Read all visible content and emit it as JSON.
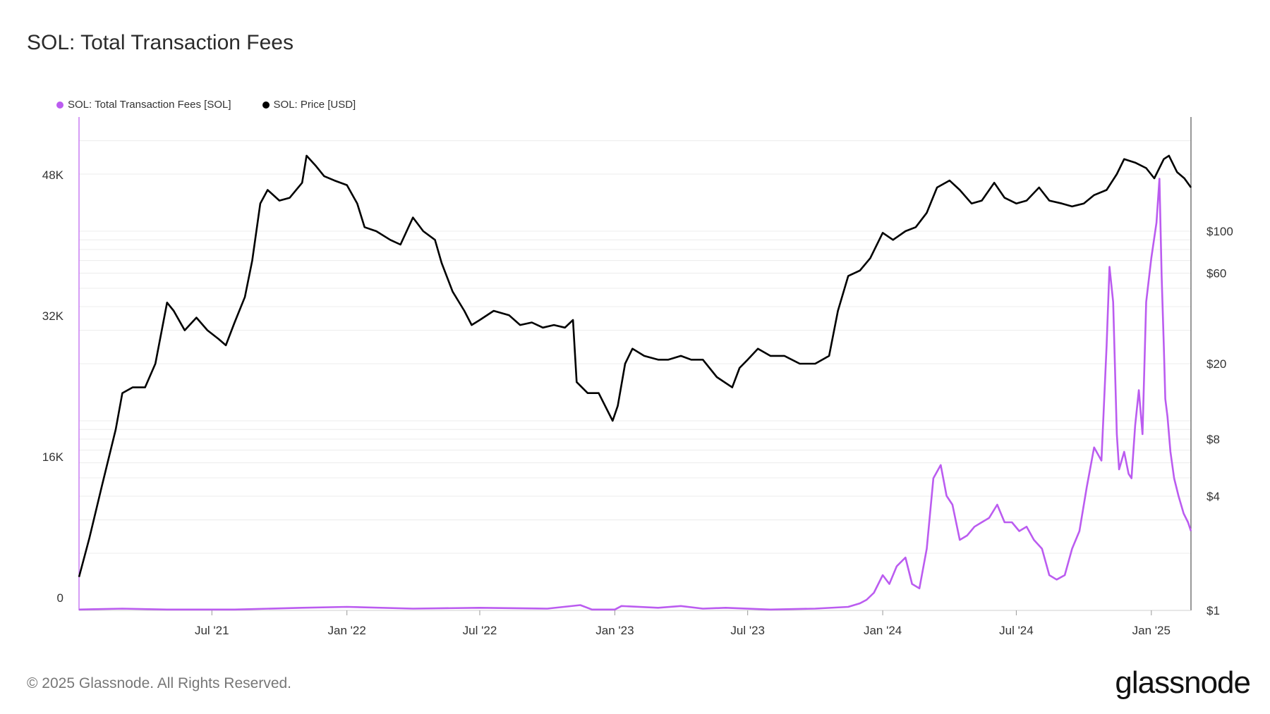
{
  "title": "SOL: Total Transaction Fees",
  "footer": "© 2025 Glassnode. All Rights Reserved.",
  "brand": "glassnode",
  "colors": {
    "fees": "#bb5cf0",
    "price": "#000000",
    "grid": "#ececec"
  },
  "legend": [
    {
      "label": "SOL: Total Transaction Fees [SOL]",
      "color": "#bb5cf0"
    },
    {
      "label": "SOL: Price [USD]",
      "color": "#000000"
    }
  ],
  "chart_data": {
    "type": "line",
    "title": "SOL: Total Transaction Fees",
    "x_range": [
      "2021-01-01",
      "2025-02-24"
    ],
    "x_ticks": [
      {
        "date": "2021-07-01",
        "label": "Jul '21"
      },
      {
        "date": "2022-01-01",
        "label": "Jan '22"
      },
      {
        "date": "2022-07-01",
        "label": "Jul '22"
      },
      {
        "date": "2023-01-01",
        "label": "Jan '23"
      },
      {
        "date": "2023-07-01",
        "label": "Jul '23"
      },
      {
        "date": "2024-01-01",
        "label": "Jan '24"
      },
      {
        "date": "2024-07-01",
        "label": "Jul '24"
      },
      {
        "date": "2025-01-01",
        "label": "Jan '25"
      }
    ],
    "y_left": {
      "scale": "linear",
      "range": [
        0,
        56000
      ],
      "ticks": [
        {
          "value": 0,
          "label": "0"
        },
        {
          "value": 16000,
          "label": "16K"
        },
        {
          "value": 32000,
          "label": "32K"
        },
        {
          "value": 48000,
          "label": "48K"
        }
      ]
    },
    "y_right": {
      "scale": "log",
      "range": [
        1,
        400
      ],
      "ticks": [
        {
          "value": 1,
          "label": "$1"
        },
        {
          "value": 4,
          "label": "$4"
        },
        {
          "value": 8,
          "label": "$8"
        },
        {
          "value": 20,
          "label": "$20"
        },
        {
          "value": 60,
          "label": "$60"
        },
        {
          "value": 100,
          "label": "$100"
        }
      ]
    },
    "series": [
      {
        "name": "SOL: Total Transaction Fees [SOL]",
        "axis": "left",
        "color": "#bb5cf0",
        "x": [
          "2021-01-01",
          "2021-03-01",
          "2021-05-01",
          "2021-08-01",
          "2021-11-01",
          "2022-01-01",
          "2022-04-01",
          "2022-07-01",
          "2022-10-01",
          "2022-11-15",
          "2022-12-01",
          "2023-01-01",
          "2023-01-10",
          "2023-03-01",
          "2023-04-01",
          "2023-05-01",
          "2023-06-01",
          "2023-08-01",
          "2023-10-01",
          "2023-11-15",
          "2023-12-01",
          "2023-12-10",
          "2023-12-20",
          "2024-01-01",
          "2024-01-10",
          "2024-01-20",
          "2024-02-01",
          "2024-02-10",
          "2024-02-20",
          "2024-03-01",
          "2024-03-10",
          "2024-03-20",
          "2024-03-28",
          "2024-04-05",
          "2024-04-15",
          "2024-04-25",
          "2024-05-05",
          "2024-05-15",
          "2024-05-25",
          "2024-06-05",
          "2024-06-15",
          "2024-06-25",
          "2024-07-05",
          "2024-07-15",
          "2024-07-25",
          "2024-08-05",
          "2024-08-15",
          "2024-08-25",
          "2024-09-05",
          "2024-09-15",
          "2024-09-25",
          "2024-10-05",
          "2024-10-15",
          "2024-10-25",
          "2024-11-01",
          "2024-11-05",
          "2024-11-10",
          "2024-11-15",
          "2024-11-18",
          "2024-11-25",
          "2024-12-01",
          "2024-12-05",
          "2024-12-10",
          "2024-12-15",
          "2024-12-20",
          "2024-12-25",
          "2025-01-01",
          "2025-01-08",
          "2025-01-12",
          "2025-01-15",
          "2025-01-18",
          "2025-01-20",
          "2025-01-23",
          "2025-01-27",
          "2025-02-01",
          "2025-02-07",
          "2025-02-14",
          "2025-02-20",
          "2025-02-24"
        ],
        "y": [
          100,
          200,
          100,
          100,
          300,
          400,
          200,
          300,
          200,
          600,
          100,
          100,
          500,
          300,
          500,
          200,
          300,
          100,
          200,
          400,
          800,
          1200,
          2000,
          4000,
          3000,
          5000,
          6000,
          3000,
          2500,
          7000,
          15000,
          16500,
          13000,
          12000,
          8000,
          8500,
          9500,
          10000,
          10500,
          12000,
          10000,
          10000,
          9000,
          9500,
          8000,
          7000,
          4000,
          3500,
          4000,
          7000,
          9000,
          14000,
          18500,
          17000,
          30000,
          39000,
          35000,
          20000,
          16000,
          18000,
          15500,
          15000,
          21000,
          25000,
          20000,
          35000,
          40000,
          44000,
          49000,
          38000,
          30000,
          24000,
          22000,
          18000,
          15000,
          13000,
          11000,
          10000,
          9000
        ]
      },
      {
        "name": "SOL: Price [USD]",
        "axis": "right",
        "color": "#000000",
        "x": [
          "2021-01-01",
          "2021-01-15",
          "2021-02-01",
          "2021-02-20",
          "2021-03-01",
          "2021-03-15",
          "2021-04-01",
          "2021-04-15",
          "2021-05-01",
          "2021-05-10",
          "2021-05-25",
          "2021-06-10",
          "2021-06-25",
          "2021-07-10",
          "2021-07-20",
          "2021-08-01",
          "2021-08-15",
          "2021-08-25",
          "2021-09-05",
          "2021-09-15",
          "2021-10-01",
          "2021-10-15",
          "2021-11-01",
          "2021-11-07",
          "2021-11-20",
          "2021-12-01",
          "2021-12-15",
          "2022-01-01",
          "2022-01-15",
          "2022-01-25",
          "2022-02-10",
          "2022-03-01",
          "2022-03-15",
          "2022-04-01",
          "2022-04-15",
          "2022-05-01",
          "2022-05-10",
          "2022-05-25",
          "2022-06-10",
          "2022-06-20",
          "2022-07-01",
          "2022-07-20",
          "2022-08-10",
          "2022-08-25",
          "2022-09-10",
          "2022-09-25",
          "2022-10-10",
          "2022-10-25",
          "2022-11-05",
          "2022-11-10",
          "2022-11-25",
          "2022-12-10",
          "2022-12-29",
          "2023-01-05",
          "2023-01-15",
          "2023-01-25",
          "2023-02-10",
          "2023-03-01",
          "2023-03-15",
          "2023-04-01",
          "2023-04-15",
          "2023-05-01",
          "2023-05-20",
          "2023-06-10",
          "2023-06-20",
          "2023-07-01",
          "2023-07-15",
          "2023-08-01",
          "2023-08-20",
          "2023-09-10",
          "2023-10-01",
          "2023-10-20",
          "2023-11-01",
          "2023-11-15",
          "2023-12-01",
          "2023-12-15",
          "2024-01-01",
          "2024-01-15",
          "2024-02-01",
          "2024-02-15",
          "2024-03-01",
          "2024-03-15",
          "2024-04-01",
          "2024-04-15",
          "2024-05-01",
          "2024-05-15",
          "2024-06-01",
          "2024-06-15",
          "2024-07-01",
          "2024-07-15",
          "2024-08-01",
          "2024-08-15",
          "2024-09-01",
          "2024-09-15",
          "2024-10-01",
          "2024-10-15",
          "2024-11-01",
          "2024-11-15",
          "2024-11-25",
          "2024-12-10",
          "2024-12-25",
          "2025-01-05",
          "2025-01-18",
          "2025-01-25",
          "2025-02-05",
          "2025-02-15",
          "2025-02-24"
        ],
        "y": [
          1.5,
          2.4,
          4.5,
          9,
          14,
          15,
          15,
          20,
          42,
          38,
          30,
          35,
          30,
          27,
          25,
          33,
          45,
          70,
          140,
          165,
          145,
          150,
          180,
          250,
          220,
          195,
          185,
          175,
          140,
          105,
          100,
          90,
          85,
          118,
          100,
          90,
          68,
          48,
          38,
          32,
          34,
          38,
          36,
          32,
          33,
          31,
          32,
          31,
          34,
          16,
          14,
          14,
          10,
          12,
          20,
          24,
          22,
          21,
          21,
          22,
          21,
          21,
          17,
          15,
          19,
          21,
          24,
          22,
          22,
          20,
          20,
          22,
          38,
          58,
          62,
          72,
          98,
          90,
          100,
          105,
          125,
          170,
          185,
          165,
          140,
          145,
          180,
          150,
          140,
          145,
          170,
          145,
          140,
          135,
          140,
          155,
          165,
          200,
          240,
          230,
          215,
          190,
          240,
          250,
          205,
          190,
          170
        ]
      }
    ]
  }
}
